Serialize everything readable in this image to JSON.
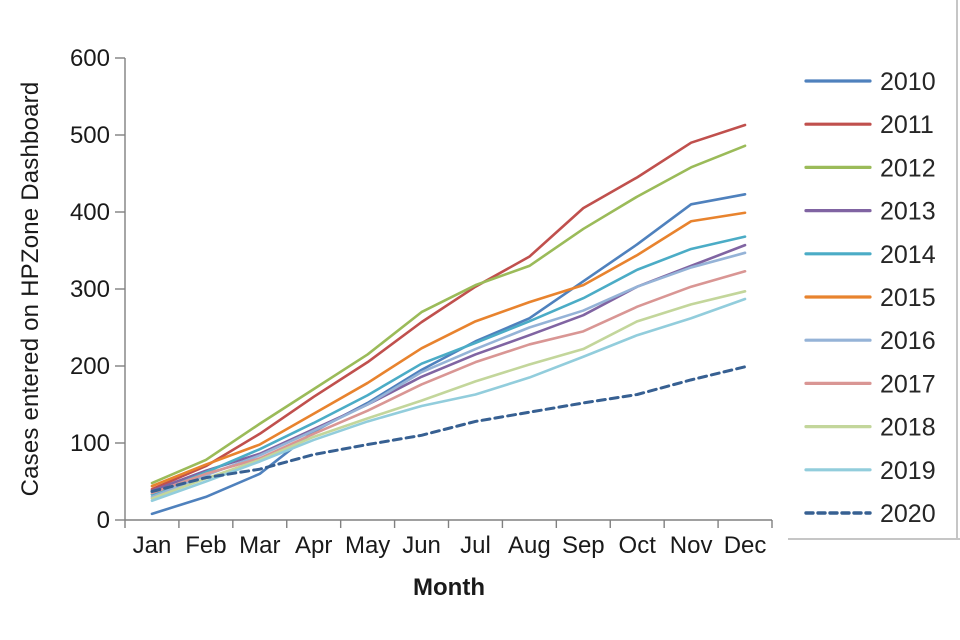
{
  "chart_data": {
    "type": "line",
    "xlabel": "Month",
    "ylabel": "Cases entered on HPZone Dashboard",
    "ylim": [
      0,
      600
    ],
    "yticks": [
      0,
      100,
      200,
      300,
      400,
      500,
      600
    ],
    "categories": [
      "Jan",
      "Feb",
      "Mar",
      "Apr",
      "May",
      "Jun",
      "Jul",
      "Aug",
      "Sep",
      "Oct",
      "Nov",
      "Dec"
    ],
    "grid": false,
    "legend_position": "right",
    "series": [
      {
        "name": "2010",
        "color": "#4F81BD",
        "style": "solid",
        "values": [
          8,
          30,
          60,
          115,
          152,
          195,
          232,
          262,
          310,
          358,
          410,
          423
        ]
      },
      {
        "name": "2011",
        "color": "#C0504D",
        "style": "solid",
        "values": [
          40,
          70,
          112,
          160,
          205,
          257,
          303,
          342,
          405,
          445,
          490,
          513
        ]
      },
      {
        "name": "2012",
        "color": "#9BBB59",
        "style": "solid",
        "values": [
          48,
          78,
          125,
          170,
          215,
          270,
          305,
          330,
          378,
          420,
          458,
          486
        ]
      },
      {
        "name": "2013",
        "color": "#8064A2",
        "style": "solid",
        "values": [
          38,
          64,
          86,
          118,
          150,
          186,
          215,
          240,
          266,
          303,
          330,
          357
        ]
      },
      {
        "name": "2014",
        "color": "#4BACC6",
        "style": "solid",
        "values": [
          33,
          62,
          92,
          126,
          162,
          203,
          230,
          258,
          288,
          325,
          352,
          368
        ]
      },
      {
        "name": "2015",
        "color": "#E8832E",
        "style": "solid",
        "values": [
          44,
          72,
          98,
          138,
          178,
          223,
          258,
          283,
          305,
          344,
          388,
          399
        ]
      },
      {
        "name": "2016",
        "color": "#95B3D7",
        "style": "solid",
        "values": [
          30,
          58,
          84,
          116,
          150,
          192,
          222,
          250,
          272,
          303,
          328,
          347
        ]
      },
      {
        "name": "2017",
        "color": "#D99694",
        "style": "solid",
        "values": [
          35,
          60,
          80,
          112,
          142,
          176,
          205,
          228,
          245,
          277,
          303,
          323
        ]
      },
      {
        "name": "2018",
        "color": "#C3D69B",
        "style": "solid",
        "values": [
          28,
          54,
          78,
          108,
          132,
          155,
          180,
          202,
          222,
          258,
          280,
          297
        ]
      },
      {
        "name": "2019",
        "color": "#92CDDC",
        "style": "solid",
        "values": [
          25,
          50,
          76,
          104,
          128,
          148,
          163,
          185,
          212,
          240,
          262,
          287
        ]
      },
      {
        "name": "2020",
        "color": "#376092",
        "style": "dashed",
        "values": [
          37,
          55,
          66,
          85,
          98,
          110,
          128,
          140,
          152,
          163,
          182,
          199
        ]
      }
    ],
    "axis_color": "#808080",
    "text_color": "#1a1a1a"
  }
}
